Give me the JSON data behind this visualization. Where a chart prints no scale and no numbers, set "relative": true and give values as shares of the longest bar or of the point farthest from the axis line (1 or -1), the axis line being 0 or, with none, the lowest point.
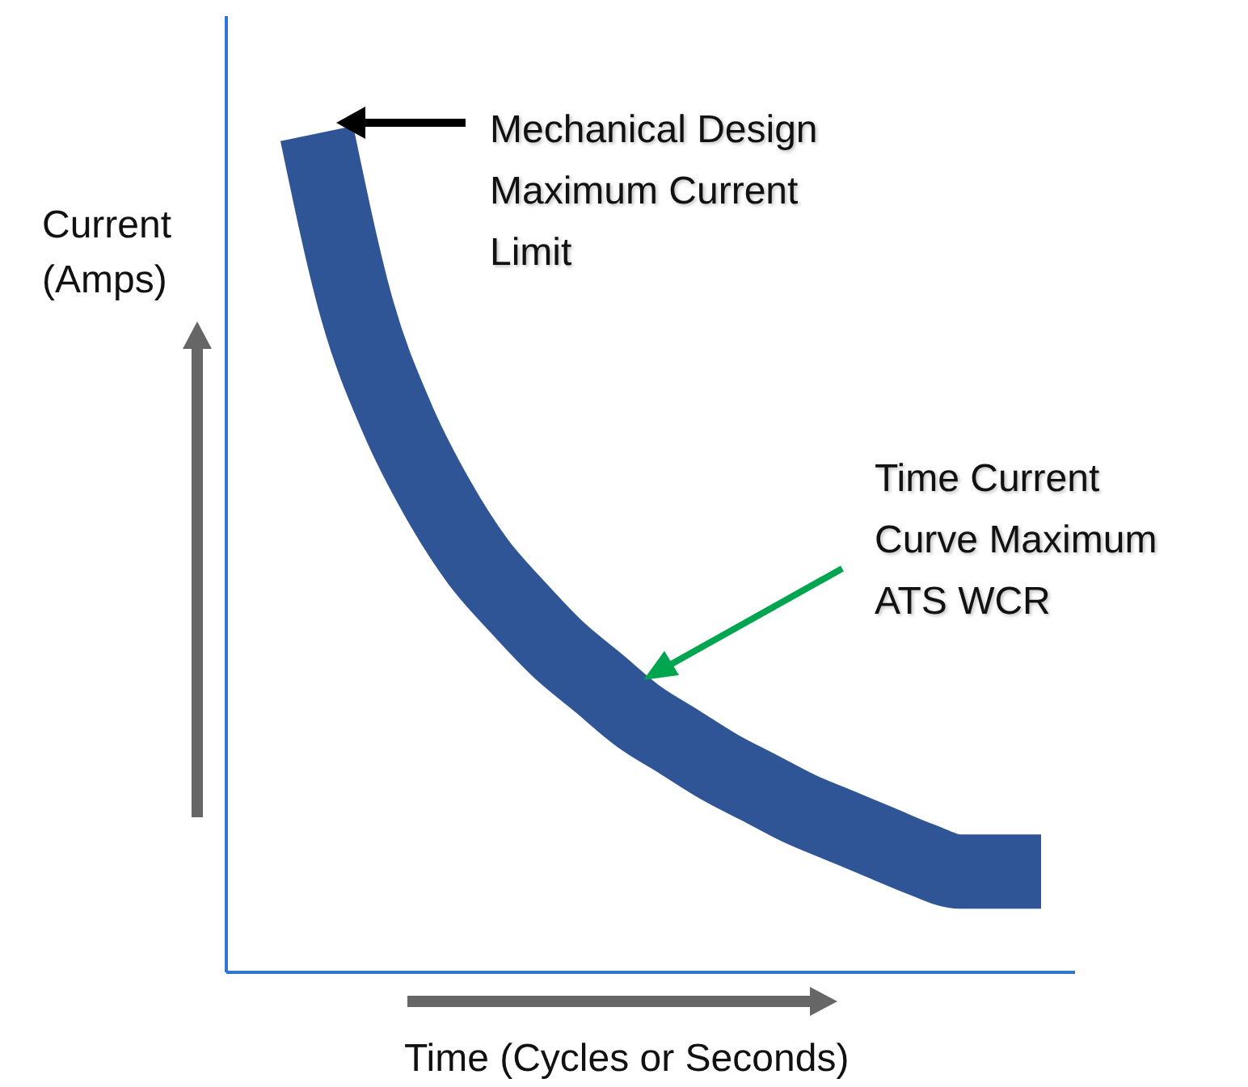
{
  "chart_data": {
    "type": "line",
    "relative": true,
    "xlabel": "Time (Cycles or Seconds)",
    "ylabel": "Current\n(Amps)",
    "categories": [
      null,
      null,
      null,
      null,
      null,
      null,
      null,
      null,
      null,
      null,
      null,
      null,
      null,
      null,
      null,
      null,
      null,
      null,
      null
    ],
    "series": [
      {
        "color": "#2f5597",
        "values": [
          1,
          0.79,
          0.66,
          0.565,
          0.49,
          0.435,
          0.385,
          0.345,
          0.305,
          0.275,
          0.245,
          0.22,
          0.195,
          0.175,
          0.155,
          0.135,
          0.12,
          0.12,
          0.12
        ]
      }
    ],
    "annotations": [
      "Mechanical Design\nMaximum Current\nLimit",
      "Time Current\nCurve Maximum\nATS WCR"
    ]
  }
}
